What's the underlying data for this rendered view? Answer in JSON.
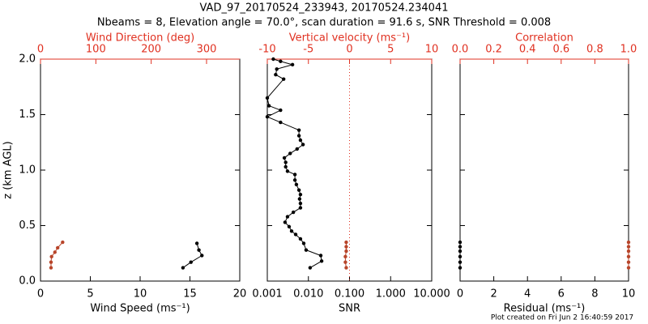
{
  "title": "VAD_97_20170524_233943, 20170524.234041",
  "subtitle": "Nbeams = 8, Elevation angle = 70.0°, scan duration = 91.6 s, SNR Threshold = 0.008",
  "footnote": "Plot created on Fri Jun  2 16:40:59 2017",
  "chart_data": [
    {
      "type": "line",
      "y_label": "z (km AGL)",
      "ylim": [
        0,
        2
      ],
      "yticks": [
        {
          "value": 0,
          "label": "0.0"
        },
        0.5,
        {
          "value": 1,
          "label": "1.0"
        },
        1.5,
        {
          "value": 2,
          "label": "2.0"
        }
      ],
      "x_label": "Wind Speed (ms⁻¹)",
      "xlim": [
        0,
        20
      ],
      "xticks": [
        0,
        5,
        10,
        15,
        20
      ],
      "x2_label": "Wind Direction (deg)",
      "x2lim": [
        0,
        360
      ],
      "x2ticks": [
        0,
        100,
        200,
        300
      ],
      "x2_color": "#e03020",
      "series": [
        {
          "color": "#000000",
          "x": [
            14.3,
            15.1,
            16.2,
            15.9,
            15.7
          ],
          "values": [
            0.12,
            0.17,
            0.23,
            0.28,
            0.34
          ]
        },
        {
          "axis": "x2",
          "color": "#b8452a",
          "x": [
            19,
            19,
            20,
            26,
            31,
            40
          ],
          "values": [
            0.12,
            0.17,
            0.22,
            0.26,
            0.3,
            0.35
          ]
        }
      ]
    },
    {
      "type": "line",
      "ylim": [
        0,
        2
      ],
      "x_label": "SNR",
      "xscale": "log",
      "xlim": [
        0.001,
        10
      ],
      "xticks": [
        {
          "value": 0.001,
          "label": "0.001"
        },
        {
          "value": 0.01,
          "label": "0.010"
        },
        {
          "value": 0.1,
          "label": "0.100"
        },
        {
          "value": 1,
          "label": "1.000"
        },
        {
          "value": 10,
          "label": "10.000"
        }
      ],
      "x2_label": "Vertical velocity (ms⁻¹)",
      "x2lim": [
        -10,
        10
      ],
      "x2ticks": [
        -10,
        -5,
        0,
        5,
        10
      ],
      "x2_color": "#e03020",
      "x2_refline": 0,
      "series": [
        {
          "color": "#000000",
          "x": [
            0.011,
            0.021,
            0.02,
            0.0088,
            0.0077,
            0.0064,
            0.0049,
            0.0039,
            0.0034,
            0.0027,
            0.0031,
            0.0043,
            0.0064,
            0.0064,
            0.0061,
            0.0064,
            0.0059,
            0.0051,
            0.0047,
            0.0047,
            0.0031,
            0.0028,
            0.0028,
            0.0026,
            0.0036,
            0.0053,
            0.0074,
            0.0064,
            0.0059,
            0.0059,
            0.0021,
            0.001,
            0.0021,
            0.0011,
            0.001,
            0.0025,
            0.0016,
            0.0017,
            0.0041,
            0.0021,
            0.0014
          ],
          "values": [
            0.12,
            0.18,
            0.23,
            0.28,
            0.34,
            0.38,
            0.42,
            0.45,
            0.49,
            0.53,
            0.58,
            0.62,
            0.66,
            0.7,
            0.74,
            0.78,
            0.82,
            0.87,
            0.91,
            0.96,
            0.99,
            1.03,
            1.07,
            1.11,
            1.15,
            1.19,
            1.23,
            1.27,
            1.31,
            1.36,
            1.43,
            1.48,
            1.54,
            1.58,
            1.65,
            1.82,
            1.86,
            1.91,
            1.95,
            1.98,
            2.0
          ]
        },
        {
          "axis": "x2",
          "color": "#b8452a",
          "x": [
            -0.4,
            -0.5,
            -0.5,
            -0.4,
            -0.4,
            -0.4
          ],
          "values": [
            0.12,
            0.17,
            0.22,
            0.27,
            0.31,
            0.35
          ]
        }
      ]
    },
    {
      "type": "line",
      "ylim": [
        0,
        2
      ],
      "x_label": "Residual (ms⁻¹)",
      "xlim": [
        0,
        10
      ],
      "xticks": [
        0,
        2,
        4,
        6,
        8,
        10
      ],
      "x2_label": "Correlation",
      "x2lim": [
        0,
        1
      ],
      "x2ticks": [
        {
          "value": 0,
          "label": "0.0"
        },
        0.2,
        0.4,
        0.6,
        0.8,
        {
          "value": 1,
          "label": "1.0"
        }
      ],
      "x2_color": "#e03020",
      "series": [
        {
          "color": "#000000",
          "x": [
            0,
            0,
            0,
            0,
            0,
            0
          ],
          "values": [
            0.12,
            0.17,
            0.22,
            0.27,
            0.31,
            0.35
          ]
        },
        {
          "axis": "x2",
          "color": "#b8452a",
          "x": [
            1,
            1,
            1,
            1,
            1,
            1
          ],
          "values": [
            0.12,
            0.17,
            0.22,
            0.27,
            0.31,
            0.35
          ]
        }
      ]
    }
  ]
}
